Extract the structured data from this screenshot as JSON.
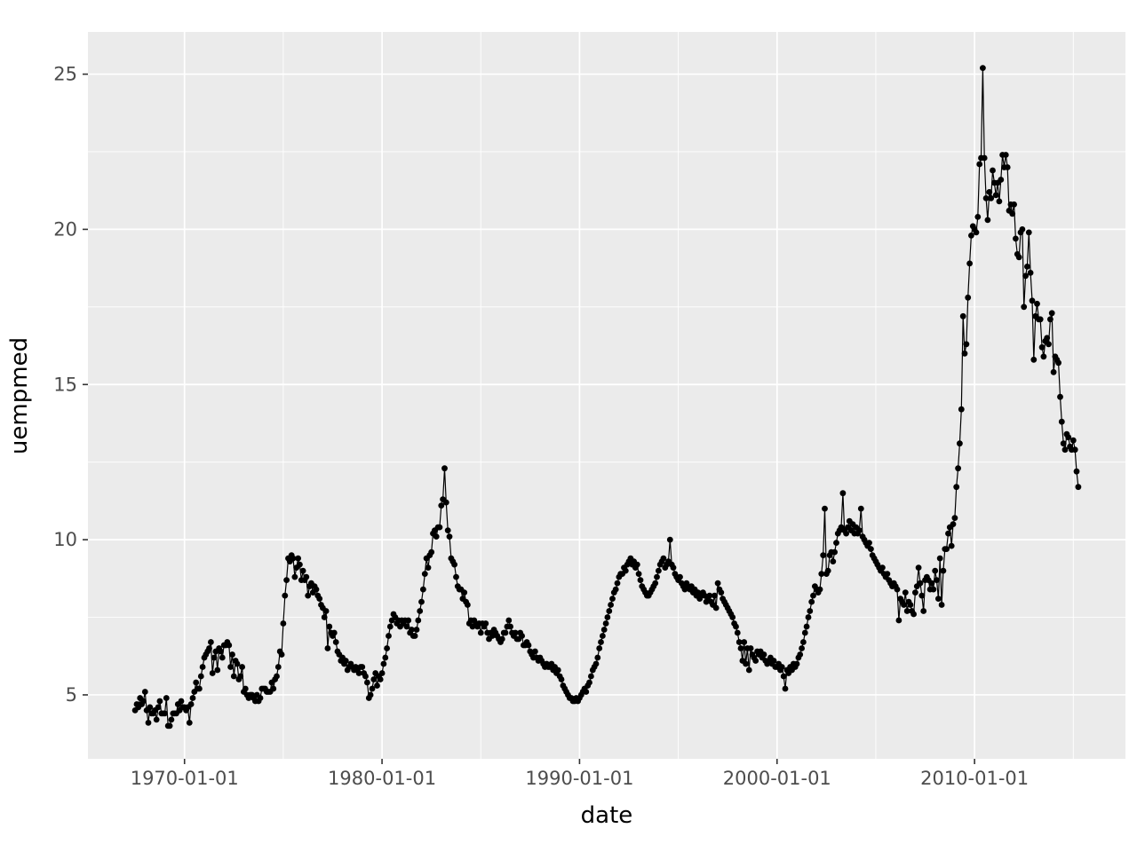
{
  "chart_data": {
    "type": "line",
    "title": "",
    "xlabel": "date",
    "ylabel": "uempmed",
    "legend": "none",
    "grid": "on",
    "x_start": "1967-07-01",
    "x_end": "2015-04-01",
    "x_frequency": "monthly",
    "x_tick_labels": [
      "1970-01-01",
      "1980-01-01",
      "1990-01-01",
      "2000-01-01",
      "2010-01-01"
    ],
    "x_tick_years": [
      1970,
      1980,
      1990,
      2000,
      2010
    ],
    "x_minor_years": [
      1975,
      1985,
      1995,
      2005,
      2015
    ],
    "y_tick_labels": [
      "5",
      "10",
      "15",
      "20",
      "25"
    ],
    "y_ticks": [
      5,
      10,
      15,
      20,
      25
    ],
    "y_minor": [
      7.5,
      12.5,
      17.5,
      22.5
    ],
    "xlim_years": [
      1965.11,
      2017.64
    ],
    "ylim": [
      2.94,
      26.36
    ],
    "colors": {
      "outer_bg": "#FFFFFF",
      "panel_bg": "#EBEBEB",
      "grid": "#FFFFFF",
      "series": "#000000",
      "tick_mark": "#333333",
      "tick_label": "#4D4D4D",
      "axis_title": "#000000"
    },
    "values_by_year": {
      "1967": [
        4.5,
        4.7,
        4.6,
        4.9,
        4.7,
        4.8
      ],
      "1968": [
        5.1,
        4.5,
        4.1,
        4.6,
        4.4,
        4.4,
        4.5,
        4.2,
        4.6,
        4.8,
        4.4,
        4.4
      ],
      "1969": [
        4.4,
        4.9,
        4.0,
        4.0,
        4.2,
        4.4,
        4.4,
        4.4,
        4.7,
        4.5,
        4.8,
        4.6
      ],
      "1970": [
        4.6,
        4.5,
        4.6,
        4.1,
        4.7,
        4.9,
        5.1,
        5.4,
        5.2,
        5.2,
        5.6,
        5.9
      ],
      "1971": [
        6.2,
        6.3,
        6.4,
        6.5,
        6.7,
        5.7,
        6.2,
        6.4,
        5.8,
        6.5,
        6.4,
        6.2
      ],
      "1972": [
        6.6,
        6.6,
        6.7,
        6.6,
        5.9,
        6.3,
        5.6,
        6.1,
        6.0,
        5.5,
        5.6,
        5.9
      ],
      "1973": [
        5.1,
        5.2,
        5.0,
        4.9,
        5.0,
        5.0,
        4.9,
        4.8,
        5.0,
        4.8,
        4.9,
        5.2
      ],
      "1974": [
        5.2,
        5.2,
        5.1,
        5.1,
        5.1,
        5.4,
        5.2,
        5.5,
        5.6,
        5.9,
        6.4,
        6.3
      ],
      "1975": [
        7.3,
        8.2,
        8.7,
        9.4,
        9.3,
        9.5,
        9.4,
        8.8,
        9.1,
        9.4,
        9.2,
        8.7
      ],
      "1976": [
        9.0,
        8.7,
        8.8,
        8.2,
        8.5,
        8.6,
        8.3,
        8.5,
        8.4,
        8.2,
        8.1,
        7.9
      ],
      "1977": [
        7.8,
        7.5,
        7.7,
        6.5,
        7.2,
        7.0,
        6.9,
        7.0,
        6.7,
        6.4,
        6.3,
        6.1
      ],
      "1978": [
        6.2,
        6.0,
        6.1,
        5.8,
        5.9,
        6.0,
        5.9,
        5.8,
        5.9,
        5.8,
        5.7,
        5.9
      ],
      "1979": [
        5.9,
        5.7,
        5.6,
        5.4,
        4.9,
        5.0,
        5.2,
        5.5,
        5.7,
        5.3,
        5.6,
        5.5
      ],
      "1980": [
        5.7,
        6.0,
        6.2,
        6.5,
        6.9,
        7.2,
        7.4,
        7.6,
        7.5,
        7.3,
        7.4,
        7.2
      ],
      "1981": [
        7.4,
        7.3,
        7.4,
        7.2,
        7.4,
        7.0,
        7.1,
        6.9,
        6.9,
        7.1,
        7.4,
        7.7
      ],
      "1982": [
        8.0,
        8.4,
        8.9,
        9.4,
        9.1,
        9.5,
        9.6,
        10.2,
        10.3,
        10.1,
        10.4,
        10.4
      ],
      "1983": [
        11.1,
        11.3,
        12.3,
        11.2,
        10.3,
        10.1,
        9.4,
        9.3,
        9.2,
        8.8,
        8.5,
        8.4
      ],
      "1984": [
        8.4,
        8.1,
        8.3,
        8.0,
        7.9,
        7.3,
        7.4,
        7.2,
        7.4,
        7.3,
        7.2,
        7.3
      ],
      "1985": [
        7.0,
        7.3,
        7.2,
        7.3,
        7.0,
        6.8,
        7.0,
        6.9,
        7.1,
        7.0,
        6.9,
        6.8
      ],
      "1986": [
        6.7,
        6.8,
        7.0,
        7.0,
        7.2,
        7.4,
        7.2,
        7.0,
        6.9,
        7.0,
        6.8,
        6.8
      ],
      "1987": [
        7.0,
        6.9,
        6.6,
        6.6,
        6.7,
        6.6,
        6.4,
        6.3,
        6.2,
        6.4,
        6.2,
        6.1
      ],
      "1988": [
        6.2,
        6.1,
        6.0,
        5.9,
        6.0,
        5.9,
        5.9,
        6.0,
        5.8,
        5.9,
        5.7,
        5.8
      ],
      "1989": [
        5.6,
        5.5,
        5.3,
        5.2,
        5.1,
        5.0,
        4.9,
        4.9,
        4.8,
        4.8,
        4.9,
        4.8
      ],
      "1990": [
        4.9,
        5.0,
        5.1,
        5.2,
        5.1,
        5.3,
        5.4,
        5.6,
        5.8,
        5.9,
        6.0,
        6.2
      ],
      "1991": [
        6.5,
        6.7,
        6.9,
        7.1,
        7.3,
        7.5,
        7.7,
        7.9,
        8.1,
        8.3,
        8.4,
        8.6
      ],
      "1992": [
        8.8,
        8.9,
        8.9,
        9.1,
        9.0,
        9.2,
        9.3,
        9.4,
        9.2,
        9.3,
        9.1,
        9.2
      ],
      "1993": [
        8.9,
        8.7,
        8.5,
        8.4,
        8.3,
        8.2,
        8.2,
        8.3,
        8.4,
        8.5,
        8.6,
        8.8
      ],
      "1994": [
        9.0,
        9.2,
        9.3,
        9.4,
        9.1,
        9.2,
        9.3,
        10.0,
        9.2,
        9.1,
        8.9,
        8.8
      ],
      "1995": [
        8.7,
        8.8,
        8.6,
        8.5,
        8.4,
        8.6,
        8.5,
        8.4,
        8.5,
        8.3,
        8.4,
        8.2
      ],
      "1996": [
        8.3,
        8.1,
        8.2,
        8.3,
        8.2,
        8.0,
        8.1,
        8.2,
        8.0,
        7.9,
        8.2,
        7.8
      ],
      "1997": [
        8.6,
        8.4,
        8.3,
        8.1,
        8.0,
        7.9,
        7.8,
        7.7,
        7.6,
        7.5,
        7.3,
        7.2
      ],
      "1998": [
        7.0,
        6.7,
        6.5,
        6.1,
        6.7,
        6.0,
        6.5,
        5.8,
        6.5,
        6.3,
        6.2,
        6.1
      ],
      "1999": [
        6.4,
        6.3,
        6.4,
        6.2,
        6.3,
        6.1,
        6.0,
        6.1,
        6.2,
        6.0,
        6.1,
        5.9
      ],
      "2000": [
        5.9,
        6.0,
        5.8,
        5.9,
        5.6,
        5.2,
        5.8,
        5.7,
        5.9,
        5.8,
        6.0,
        5.9
      ],
      "2001": [
        6.0,
        6.2,
        6.3,
        6.5,
        6.7,
        7.0,
        7.2,
        7.5,
        7.7,
        8.0,
        8.2,
        8.5
      ],
      "2002": [
        8.4,
        8.3,
        8.4,
        8.9,
        9.5,
        11.0,
        8.9,
        9.0,
        9.5,
        9.6,
        9.3,
        9.6
      ],
      "2003": [
        9.9,
        10.2,
        10.3,
        10.4,
        11.5,
        10.3,
        10.2,
        10.4,
        10.6,
        10.3,
        10.5,
        10.2
      ],
      "2004": [
        10.4,
        10.2,
        10.3,
        11.0,
        10.1,
        10.0,
        9.9,
        9.8,
        9.9,
        9.7,
        9.5,
        9.4
      ],
      "2005": [
        9.3,
        9.2,
        9.1,
        9.0,
        9.1,
        8.9,
        8.8,
        8.9,
        8.7,
        8.6,
        8.5,
        8.6
      ],
      "2006": [
        8.5,
        8.4,
        7.4,
        8.1,
        8.0,
        7.9,
        8.3,
        7.7,
        8.0,
        7.9,
        7.7,
        7.6
      ],
      "2007": [
        8.3,
        8.5,
        9.1,
        8.6,
        8.2,
        7.7,
        8.7,
        8.8,
        8.7,
        8.4,
        8.6,
        8.4
      ],
      "2008": [
        9.0,
        8.7,
        8.1,
        9.4,
        7.9,
        9.0,
        9.7,
        9.7,
        10.2,
        10.4,
        9.8,
        10.5
      ],
      "2009": [
        10.7,
        11.7,
        12.3,
        13.1,
        14.2,
        17.2,
        16.0,
        16.3,
        17.8,
        18.9,
        19.8,
        20.1
      ],
      "2010": [
        20.0,
        19.9,
        20.4,
        22.1,
        22.3,
        25.2,
        22.3,
        21.0,
        20.3,
        21.2,
        21.0,
        21.9
      ],
      "2011": [
        21.5,
        21.1,
        21.5,
        20.9,
        21.6,
        22.4,
        22.0,
        22.4,
        22.0,
        20.6,
        20.8,
        20.5
      ],
      "2012": [
        20.8,
        19.7,
        19.2,
        19.1,
        19.9,
        20.0,
        17.5,
        18.5,
        18.8,
        19.9,
        18.6,
        17.7
      ],
      "2013": [
        15.8,
        17.2,
        17.6,
        17.1,
        17.1,
        16.2,
        15.9,
        16.4,
        16.5,
        16.3,
        17.1,
        17.3
      ],
      "2014": [
        15.4,
        15.9,
        15.8,
        15.7,
        14.6,
        13.8,
        13.1,
        12.9,
        13.4,
        13.3,
        13.0,
        12.9
      ],
      "2015": [
        13.2,
        12.9,
        12.2,
        11.7
      ]
    }
  }
}
